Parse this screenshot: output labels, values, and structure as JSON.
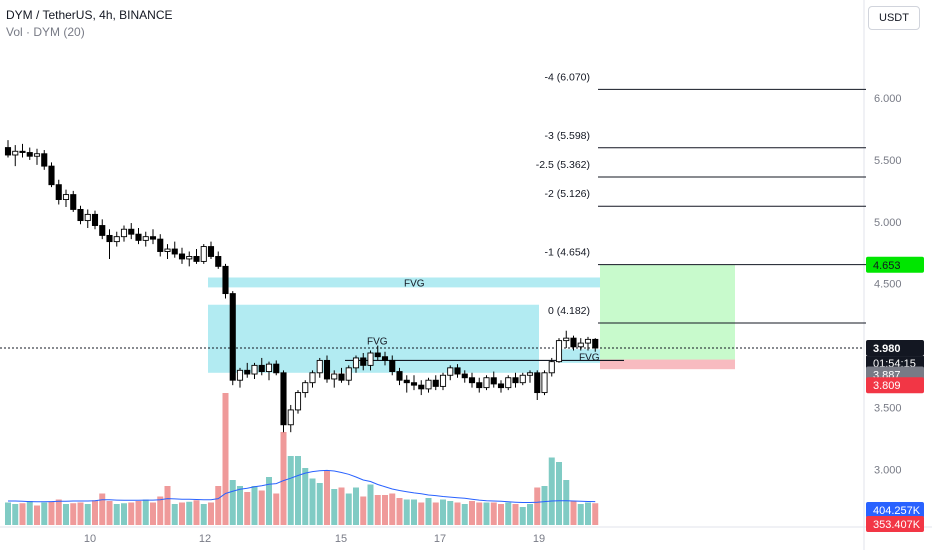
{
  "header": {
    "symbol_line": "DYM / TetherUS, 4h, BINANCE",
    "volume_line": "Vol · DYM (20)"
  },
  "currency_button": "USDT",
  "price_axis": {
    "ticks": [
      {
        "label": "6.000",
        "value": 6.0
      },
      {
        "label": "5.500",
        "value": 5.5
      },
      {
        "label": "5.000",
        "value": 5.0
      },
      {
        "label": "4.500",
        "value": 4.5
      },
      {
        "label": "3.500",
        "value": 3.5
      },
      {
        "label": "3.000",
        "value": 3.0
      }
    ],
    "tags": {
      "target": {
        "label": "4.653",
        "value": 4.653,
        "bg": "#00e600",
        "fg": "#131722"
      },
      "last": {
        "label": "3.980",
        "value": 3.98,
        "bg": "#131722",
        "fg": "#ffffff"
      },
      "countdown": "01:54:15",
      "entry": {
        "label": "3.887",
        "value": 3.887,
        "bg": "#787b86",
        "fg": "#ffffff"
      },
      "stop": {
        "label": "3.809",
        "value": 3.809,
        "bg": "#f23645",
        "fg": "#ffffff"
      },
      "volume": {
        "label": "404.257K",
        "bg": "#2962ff",
        "fg": "#ffffff"
      },
      "volume_ma": {
        "label": "353.407K",
        "bg": "#f23645",
        "fg": "#ffffff"
      }
    }
  },
  "time_axis": {
    "labels": [
      "10",
      "12",
      "15",
      "17",
      "19"
    ]
  },
  "fib_levels": [
    {
      "label": "-4 (6.070)",
      "value": 6.07
    },
    {
      "label": "-3 (5.598)",
      "value": 5.598
    },
    {
      "label": "-2.5 (5.362)",
      "value": 5.362
    },
    {
      "label": "-2 (5.126)",
      "value": 5.126
    },
    {
      "label": "-1 (4.654)",
      "value": 4.654
    },
    {
      "label": "0 (4.182)",
      "value": 4.182
    }
  ],
  "fvg_labels": [
    "FVG",
    "FVG",
    "FVG"
  ],
  "colors": {
    "up": "#ffffff",
    "down": "#000000",
    "wick": "#000000",
    "fvg": "#b2ebf2",
    "profit": "#c8facc",
    "loss": "#f8bbc0",
    "vol_up": "#80cbc4",
    "vol_down": "#ef9a9a",
    "vol_ma": "#2962ff",
    "fib_line": "#131722"
  },
  "chart_data": {
    "type": "candlestick",
    "symbol": "DYM / TetherUS",
    "interval": "4h",
    "exchange": "BINANCE",
    "ylim": [
      2.55,
      6.55
    ],
    "candles": [
      [
        5.6,
        5.66,
        5.52,
        5.54
      ],
      [
        5.54,
        5.62,
        5.45,
        5.57
      ],
      [
        5.57,
        5.63,
        5.52,
        5.56
      ],
      [
        5.56,
        5.6,
        5.5,
        5.53
      ],
      [
        5.53,
        5.59,
        5.46,
        5.55
      ],
      [
        5.55,
        5.58,
        5.42,
        5.45
      ],
      [
        5.45,
        5.48,
        5.28,
        5.3
      ],
      [
        5.3,
        5.34,
        5.14,
        5.18
      ],
      [
        5.18,
        5.26,
        5.12,
        5.22
      ],
      [
        5.22,
        5.25,
        5.08,
        5.1
      ],
      [
        5.1,
        5.13,
        4.98,
        5.01
      ],
      [
        5.01,
        5.1,
        4.95,
        5.06
      ],
      [
        5.06,
        5.09,
        4.94,
        4.97
      ],
      [
        4.97,
        5.02,
        4.86,
        4.89
      ],
      [
        4.89,
        4.94,
        4.7,
        4.84
      ],
      [
        4.84,
        4.92,
        4.8,
        4.88
      ],
      [
        4.88,
        4.97,
        4.84,
        4.94
      ],
      [
        4.94,
        4.99,
        4.86,
        4.9
      ],
      [
        4.9,
        4.95,
        4.82,
        4.85
      ],
      [
        4.85,
        4.92,
        4.8,
        4.88
      ],
      [
        4.88,
        4.94,
        4.82,
        4.86
      ],
      [
        4.86,
        4.9,
        4.72,
        4.76
      ],
      [
        4.76,
        4.82,
        4.7,
        4.78
      ],
      [
        4.78,
        4.84,
        4.71,
        4.74
      ],
      [
        4.74,
        4.79,
        4.66,
        4.7
      ],
      [
        4.7,
        4.76,
        4.64,
        4.72
      ],
      [
        4.72,
        4.78,
        4.66,
        4.68
      ],
      [
        4.68,
        4.82,
        4.66,
        4.8
      ],
      [
        4.8,
        4.84,
        4.7,
        4.72
      ],
      [
        4.72,
        4.76,
        4.62,
        4.64
      ],
      [
        4.64,
        4.66,
        4.38,
        4.42
      ],
      [
        4.42,
        4.44,
        3.68,
        3.72
      ],
      [
        3.72,
        3.82,
        3.66,
        3.8
      ],
      [
        3.8,
        3.86,
        3.74,
        3.77
      ],
      [
        3.77,
        3.86,
        3.73,
        3.84
      ],
      [
        3.84,
        3.9,
        3.76,
        3.79
      ],
      [
        3.79,
        3.87,
        3.72,
        3.85
      ],
      [
        3.85,
        3.88,
        3.76,
        3.78
      ],
      [
        3.78,
        3.8,
        3.3,
        3.36
      ],
      [
        3.36,
        3.52,
        3.3,
        3.48
      ],
      [
        3.48,
        3.64,
        3.45,
        3.62
      ],
      [
        3.62,
        3.72,
        3.58,
        3.7
      ],
      [
        3.7,
        3.8,
        3.66,
        3.78
      ],
      [
        3.78,
        3.9,
        3.74,
        3.88
      ],
      [
        3.88,
        3.92,
        3.7,
        3.73
      ],
      [
        3.73,
        3.8,
        3.66,
        3.77
      ],
      [
        3.77,
        3.82,
        3.7,
        3.72
      ],
      [
        3.72,
        3.84,
        3.68,
        3.82
      ],
      [
        3.82,
        3.92,
        3.78,
        3.9
      ],
      [
        3.9,
        3.94,
        3.8,
        3.84
      ],
      [
        3.84,
        3.96,
        3.8,
        3.94
      ],
      [
        3.94,
        4.0,
        3.88,
        3.91
      ],
      [
        3.91,
        3.95,
        3.84,
        3.88
      ],
      [
        3.88,
        3.92,
        3.76,
        3.79
      ],
      [
        3.79,
        3.82,
        3.68,
        3.72
      ],
      [
        3.72,
        3.76,
        3.62,
        3.7
      ],
      [
        3.7,
        3.76,
        3.64,
        3.68
      ],
      [
        3.68,
        3.72,
        3.6,
        3.65
      ],
      [
        3.65,
        3.74,
        3.62,
        3.72
      ],
      [
        3.72,
        3.76,
        3.64,
        3.67
      ],
      [
        3.67,
        3.78,
        3.64,
        3.76
      ],
      [
        3.76,
        3.84,
        3.72,
        3.82
      ],
      [
        3.82,
        3.85,
        3.74,
        3.77
      ],
      [
        3.77,
        3.8,
        3.7,
        3.74
      ],
      [
        3.74,
        3.78,
        3.66,
        3.7
      ],
      [
        3.7,
        3.74,
        3.62,
        3.66
      ],
      [
        3.66,
        3.76,
        3.64,
        3.74
      ],
      [
        3.74,
        3.79,
        3.66,
        3.69
      ],
      [
        3.69,
        3.72,
        3.62,
        3.66
      ],
      [
        3.66,
        3.76,
        3.64,
        3.74
      ],
      [
        3.74,
        3.78,
        3.66,
        3.7
      ],
      [
        3.7,
        3.78,
        3.68,
        3.76
      ],
      [
        3.76,
        3.8,
        3.7,
        3.78
      ],
      [
        3.78,
        3.8,
        3.56,
        3.62
      ],
      [
        3.62,
        3.8,
        3.6,
        3.78
      ],
      [
        3.78,
        3.9,
        3.75,
        3.87
      ],
      [
        3.87,
        4.06,
        3.86,
        4.04
      ],
      [
        4.04,
        4.12,
        3.98,
        4.06
      ],
      [
        4.06,
        4.08,
        3.96,
        3.99
      ],
      [
        3.99,
        4.06,
        3.96,
        4.02
      ],
      [
        4.02,
        4.07,
        3.96,
        4.05
      ],
      [
        4.05,
        4.06,
        3.95,
        3.98
      ]
    ],
    "volume": [
      [
        150,
        "up"
      ],
      [
        140,
        "up"
      ],
      [
        145,
        "down"
      ],
      [
        160,
        "up"
      ],
      [
        130,
        "down"
      ],
      [
        150,
        "up"
      ],
      [
        155,
        "down"
      ],
      [
        170,
        "down"
      ],
      [
        140,
        "up"
      ],
      [
        145,
        "down"
      ],
      [
        150,
        "down"
      ],
      [
        140,
        "up"
      ],
      [
        165,
        "down"
      ],
      [
        210,
        "down"
      ],
      [
        160,
        "down"
      ],
      [
        140,
        "up"
      ],
      [
        145,
        "up"
      ],
      [
        150,
        "down"
      ],
      [
        160,
        "down"
      ],
      [
        170,
        "up"
      ],
      [
        150,
        "down"
      ],
      [
        190,
        "down"
      ],
      [
        260,
        "down"
      ],
      [
        140,
        "up"
      ],
      [
        150,
        "down"
      ],
      [
        155,
        "up"
      ],
      [
        165,
        "down"
      ],
      [
        140,
        "up"
      ],
      [
        150,
        "down"
      ],
      [
        260,
        "down"
      ],
      [
        880,
        "down"
      ],
      [
        300,
        "up"
      ],
      [
        260,
        "up"
      ],
      [
        220,
        "down"
      ],
      [
        260,
        "up"
      ],
      [
        230,
        "down"
      ],
      [
        320,
        "up"
      ],
      [
        210,
        "down"
      ],
      [
        620,
        "down"
      ],
      [
        460,
        "up"
      ],
      [
        460,
        "up"
      ],
      [
        380,
        "up"
      ],
      [
        310,
        "up"
      ],
      [
        280,
        "up"
      ],
      [
        360,
        "down"
      ],
      [
        240,
        "up"
      ],
      [
        250,
        "down"
      ],
      [
        210,
        "up"
      ],
      [
        250,
        "up"
      ],
      [
        190,
        "down"
      ],
      [
        270,
        "up"
      ],
      [
        200,
        "down"
      ],
      [
        200,
        "down"
      ],
      [
        210,
        "down"
      ],
      [
        180,
        "down"
      ],
      [
        170,
        "up"
      ],
      [
        170,
        "up"
      ],
      [
        150,
        "down"
      ],
      [
        180,
        "up"
      ],
      [
        150,
        "down"
      ],
      [
        170,
        "up"
      ],
      [
        160,
        "up"
      ],
      [
        150,
        "down"
      ],
      [
        140,
        "up"
      ],
      [
        160,
        "down"
      ],
      [
        150,
        "down"
      ],
      [
        150,
        "up"
      ],
      [
        150,
        "down"
      ],
      [
        140,
        "down"
      ],
      [
        150,
        "up"
      ],
      [
        140,
        "down"
      ],
      [
        120,
        "up"
      ],
      [
        140,
        "up"
      ],
      [
        250,
        "down"
      ],
      [
        260,
        "up"
      ],
      [
        450,
        "up"
      ],
      [
        420,
        "up"
      ],
      [
        300,
        "up"
      ],
      [
        160,
        "down"
      ],
      [
        140,
        "up"
      ],
      [
        150,
        "up"
      ],
      [
        145,
        "down"
      ]
    ],
    "volume_ma": [
      160,
      160,
      158,
      156,
      155,
      155,
      156,
      158,
      158,
      160,
      160,
      160,
      162,
      168,
      168,
      166,
      165,
      165,
      165,
      166,
      166,
      168,
      176,
      174,
      172,
      172,
      170,
      168,
      168,
      176,
      210,
      225,
      238,
      245,
      255,
      262,
      272,
      276,
      296,
      312,
      330,
      346,
      356,
      362,
      364,
      360,
      350,
      338,
      320,
      300,
      290,
      270,
      255,
      240,
      230,
      222,
      214,
      208,
      200,
      196,
      190,
      186,
      182,
      178,
      172,
      166,
      162,
      160,
      158,
      155,
      152,
      150,
      150,
      152,
      156,
      160,
      162,
      162,
      160,
      158,
      157,
      156
    ]
  }
}
